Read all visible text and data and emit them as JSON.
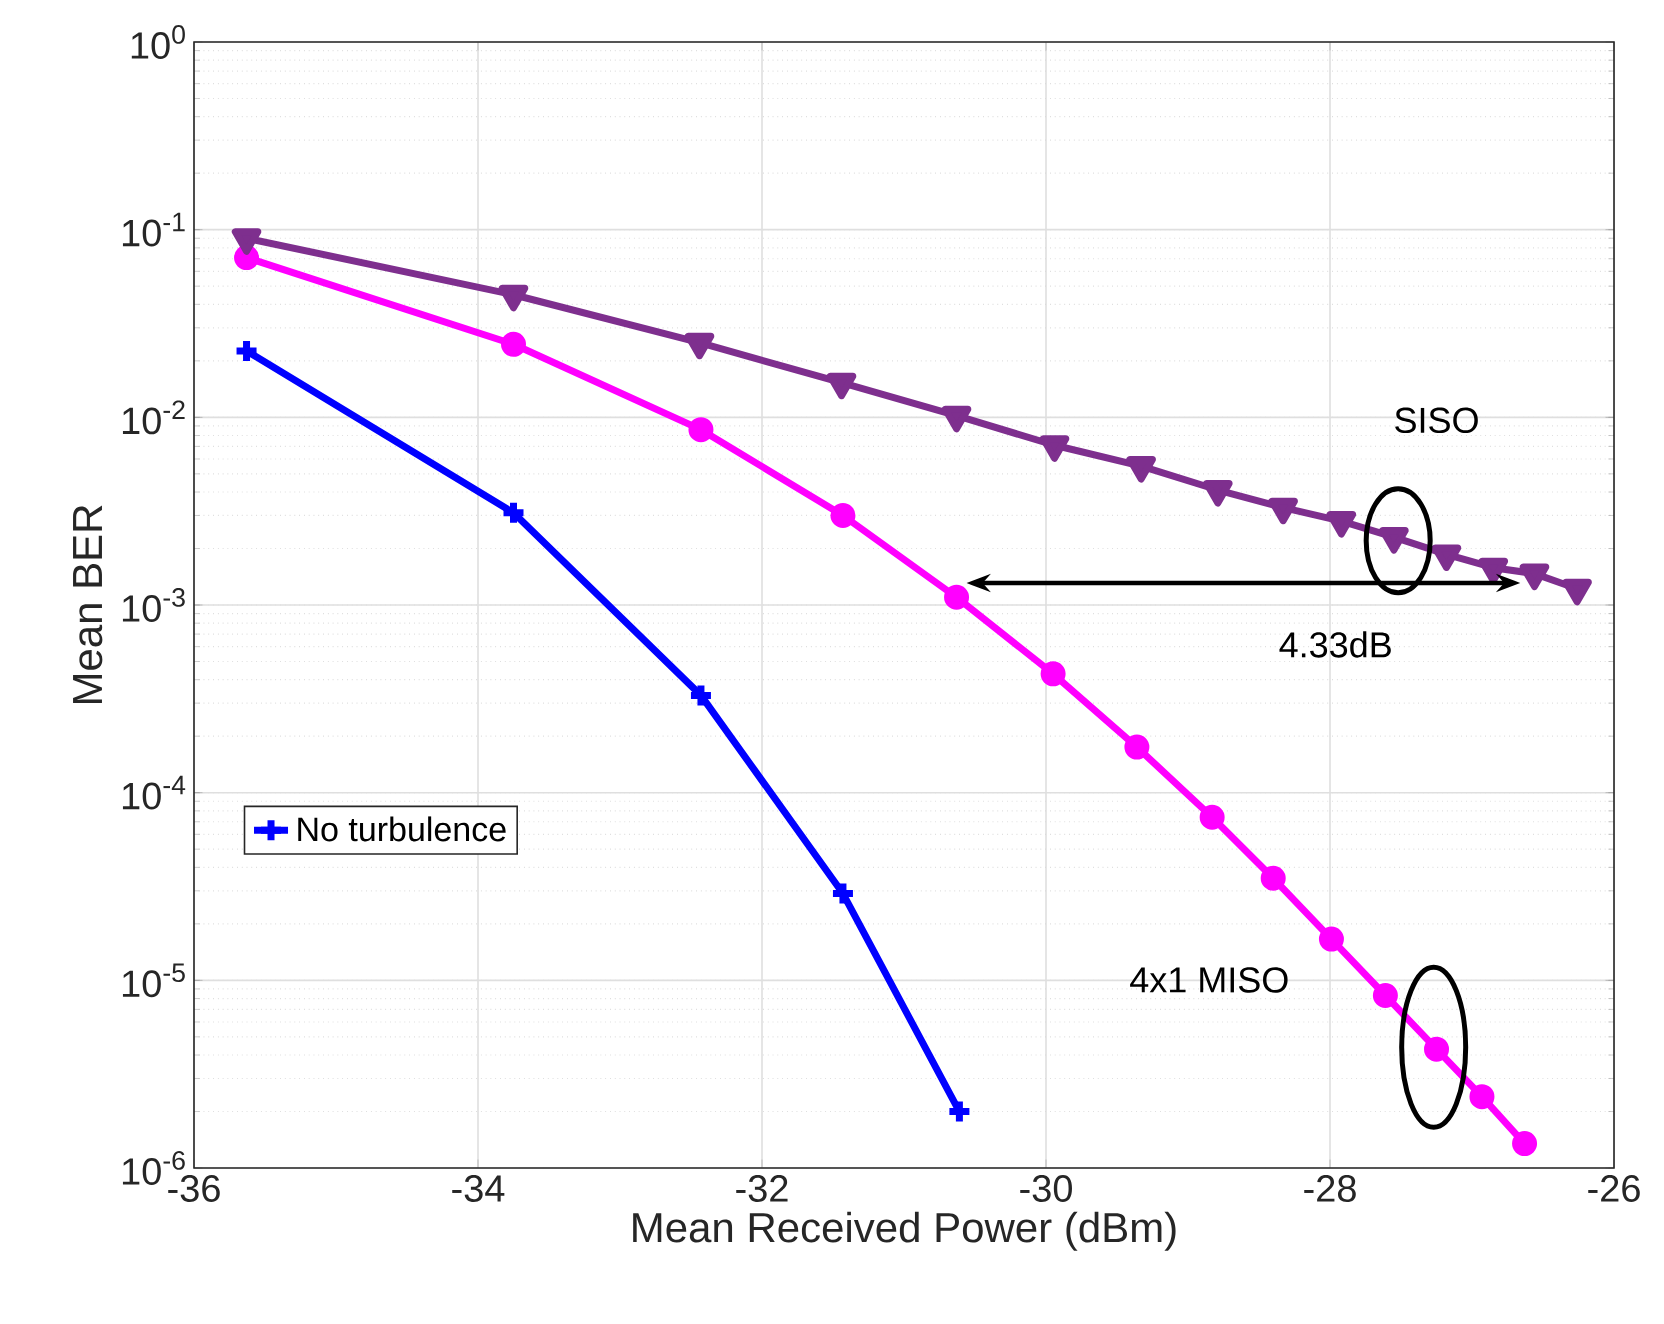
{
  "chart_data": {
    "type": "line",
    "xlabel": "Mean Received Power (dBm)",
    "ylabel": "Mean BER",
    "log": "y",
    "grid": true,
    "legend": "left",
    "xlim": [
      -36,
      -26
    ],
    "xticks": [
      -36,
      -34,
      -32,
      -30,
      -28,
      -26
    ],
    "ylim": [
      1e-06,
      1
    ],
    "yticks": [
      {
        "value": 1e-06,
        "label": "10$^{-6}$"
      },
      {
        "value": 1e-05,
        "label": "10$^{-5}$"
      },
      {
        "value": 0.0001,
        "label": "10$^{-4}$"
      },
      {
        "value": 0.001,
        "label": "10$^{-3}$"
      },
      {
        "value": 0.01,
        "label": "10$^{-2}$"
      },
      {
        "value": 0.1,
        "label": "10$^{-1}$"
      },
      {
        "value": 1,
        "label": "10$^{0}$"
      }
    ],
    "series": [
      {
        "name": "No turbulence",
        "color": "#0000ff",
        "marker": "cross",
        "x": [
          -35.63,
          -33.75,
          -32.43,
          -31.43,
          -30.61
        ],
        "values": [
          0.0226,
          0.0031,
          0.00033,
          2.9e-05,
          2e-06
        ]
      },
      {
        "color": "#ff00ff",
        "marker": "circle",
        "x": [
          -35.63,
          -33.75,
          -32.43,
          -31.43,
          -30.63,
          -29.95,
          -29.36,
          -28.83,
          -28.4,
          -27.99,
          -27.61,
          -27.25,
          -26.93,
          -26.63
        ],
        "values": [
          0.071,
          0.0245,
          0.0086,
          0.003,
          0.0011,
          0.00043,
          0.000175,
          7.4e-05,
          3.5e-05,
          1.66e-05,
          8.3e-06,
          4.3e-06,
          2.4e-06,
          1.35e-06
        ]
      },
      {
        "color": "#7e2f8e",
        "marker": "triangle",
        "x": [
          -35.63,
          -33.75,
          -32.44,
          -31.44,
          -30.63,
          -29.94,
          -29.33,
          -28.79,
          -28.33,
          -27.92,
          -27.55,
          -27.18,
          -26.85,
          -26.56,
          -26.26
        ],
        "values": [
          0.09,
          0.045,
          0.025,
          0.0153,
          0.0102,
          0.0071,
          0.0055,
          0.0041,
          0.0033,
          0.0028,
          0.0023,
          0.00186,
          0.00158,
          0.00147,
          0.00122
        ]
      }
    ],
    "annotations": [
      "SISO",
      "4.33dB",
      "4x1 MISO"
    ]
  }
}
